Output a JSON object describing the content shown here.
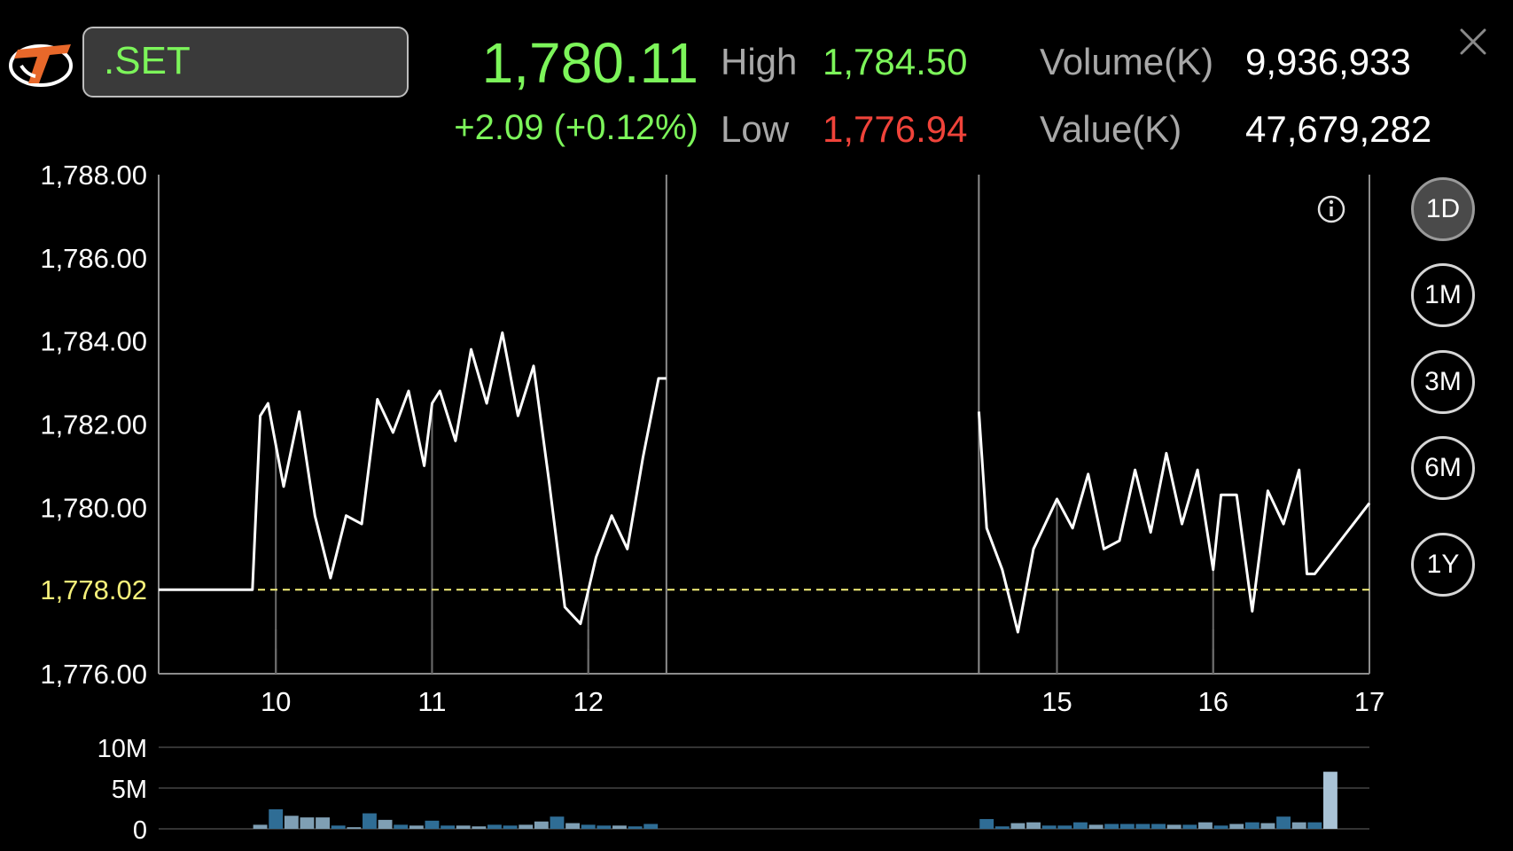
{
  "header": {
    "symbol": ".SET",
    "last_price": "1,780.11",
    "change": "+2.09 (+0.12%)",
    "high_label": "High",
    "high_value": "1,784.50",
    "low_label": "Low",
    "low_value": "1,776.94",
    "volume_label": "Volume(K)",
    "volume_value": "9,936,933",
    "value_label": "Value(K)",
    "value_value": "47,679,282"
  },
  "colors": {
    "up": "#7cf55a",
    "down": "#f0433a",
    "reference_line": "#f5f07a",
    "price_line": "#ffffff",
    "volume_bar": "#2f6d95",
    "volume_bar_light": "#7f9fb4",
    "volume_bar_highlight": "#a9c3d6"
  },
  "icons": {
    "logo": "brand-logo-icon",
    "info": "info-icon",
    "close": "close-icon"
  },
  "periods": [
    {
      "label": "1D",
      "active": true
    },
    {
      "label": "1M",
      "active": false
    },
    {
      "label": "3M",
      "active": false
    },
    {
      "label": "6M",
      "active": false
    },
    {
      "label": "1Y",
      "active": false
    }
  ],
  "chart_data": [
    {
      "type": "line",
      "title": "",
      "xlabel": "",
      "ylabel": "",
      "ylim": [
        1776,
        1788
      ],
      "y_ticks": [
        "1,788.00",
        "1,786.00",
        "1,784.00",
        "1,782.00",
        "1,780.00",
        "1,778.02",
        "1,776.00"
      ],
      "y_tick_values": [
        1788,
        1786,
        1784,
        1782,
        1780,
        1778.02,
        1776
      ],
      "x_ticks": [
        "10",
        "11",
        "12",
        "15",
        "16",
        "17"
      ],
      "x_tick_values": [
        10,
        11,
        12,
        15,
        16,
        17
      ],
      "x_range": [
        9.25,
        17
      ],
      "session_breaks": [
        12.5,
        14.5
      ],
      "reference": {
        "value": 1778.02,
        "label": "1,778.02"
      },
      "grid": "vertical lines at time ticks",
      "series": [
        {
          "segment": "morning",
          "x": [
            9.25,
            9.85,
            9.9,
            9.95,
            10.05,
            10.15,
            10.25,
            10.35,
            10.45,
            10.55,
            10.65,
            10.75,
            10.85,
            10.95,
            11.0,
            11.05,
            11.15,
            11.25,
            11.35,
            11.45,
            11.55,
            11.65,
            11.75,
            11.85,
            11.95,
            12.05,
            12.15,
            12.25,
            12.35,
            12.45,
            12.5
          ],
          "y": [
            1778.02,
            1778.02,
            1782.2,
            1782.5,
            1780.5,
            1782.3,
            1779.8,
            1778.3,
            1779.8,
            1779.6,
            1782.6,
            1781.8,
            1782.8,
            1781.0,
            1782.5,
            1782.8,
            1781.6,
            1783.8,
            1782.5,
            1784.2,
            1782.2,
            1783.4,
            1780.6,
            1777.6,
            1777.2,
            1778.8,
            1779.8,
            1779.0,
            1781.2,
            1783.1,
            1783.1
          ]
        },
        {
          "segment": "afternoon",
          "x": [
            14.5,
            14.55,
            14.65,
            14.75,
            14.85,
            15.0,
            15.1,
            15.2,
            15.3,
            15.4,
            15.5,
            15.6,
            15.7,
            15.8,
            15.9,
            16.0,
            16.05,
            16.15,
            16.25,
            16.35,
            16.45,
            16.55,
            16.6,
            16.65,
            17.0
          ],
          "y": [
            1782.3,
            1779.5,
            1778.5,
            1777.0,
            1779.0,
            1780.2,
            1779.5,
            1780.8,
            1779.0,
            1779.2,
            1780.9,
            1779.4,
            1781.3,
            1779.6,
            1780.9,
            1778.5,
            1780.3,
            1780.3,
            1777.5,
            1780.4,
            1779.6,
            1780.9,
            1778.4,
            1778.4,
            1780.1
          ]
        }
      ]
    },
    {
      "type": "bar",
      "title": "",
      "ylim": [
        0,
        10000000
      ],
      "y_ticks": [
        "10M",
        "5M",
        "0"
      ],
      "y_tick_values": [
        10000000,
        5000000,
        0
      ],
      "x_range": [
        9.25,
        17
      ],
      "bar_width_hours": 0.09,
      "x": [
        9.9,
        10.0,
        10.1,
        10.2,
        10.3,
        10.4,
        10.5,
        10.6,
        10.7,
        10.8,
        10.9,
        11.0,
        11.1,
        11.2,
        11.3,
        11.4,
        11.5,
        11.6,
        11.7,
        11.8,
        11.9,
        12.0,
        12.1,
        12.2,
        12.3,
        12.4,
        14.55,
        14.65,
        14.75,
        14.85,
        14.95,
        15.05,
        15.15,
        15.25,
        15.35,
        15.45,
        15.55,
        15.65,
        15.75,
        15.85,
        15.95,
        16.05,
        16.15,
        16.25,
        16.35,
        16.45,
        16.55,
        16.65,
        16.75
      ],
      "values": [
        500000,
        2400000,
        1600000,
        1400000,
        1400000,
        400000,
        200000,
        1900000,
        1100000,
        500000,
        400000,
        1000000,
        400000,
        400000,
        300000,
        500000,
        400000,
        500000,
        900000,
        1500000,
        700000,
        500000,
        400000,
        400000,
        300000,
        600000,
        1200000,
        300000,
        700000,
        800000,
        400000,
        400000,
        800000,
        500000,
        600000,
        600000,
        600000,
        600000,
        500000,
        500000,
        800000,
        400000,
        600000,
        800000,
        700000,
        1500000,
        800000,
        800000,
        7000000
      ],
      "shades": [
        "light",
        "dark",
        "light",
        "light",
        "light",
        "dark",
        "light",
        "dark",
        "light",
        "dark",
        "light",
        "dark",
        "dark",
        "light",
        "light",
        "dark",
        "dark",
        "light",
        "light",
        "dark",
        "light",
        "dark",
        "dark",
        "light",
        "dark",
        "dark",
        "dark",
        "dark",
        "light",
        "light",
        "dark",
        "dark",
        "dark",
        "light",
        "dark",
        "dark",
        "dark",
        "dark",
        "light",
        "dark",
        "light",
        "dark",
        "light",
        "dark",
        "light",
        "dark",
        "light",
        "dark",
        "highlight"
      ]
    }
  ]
}
